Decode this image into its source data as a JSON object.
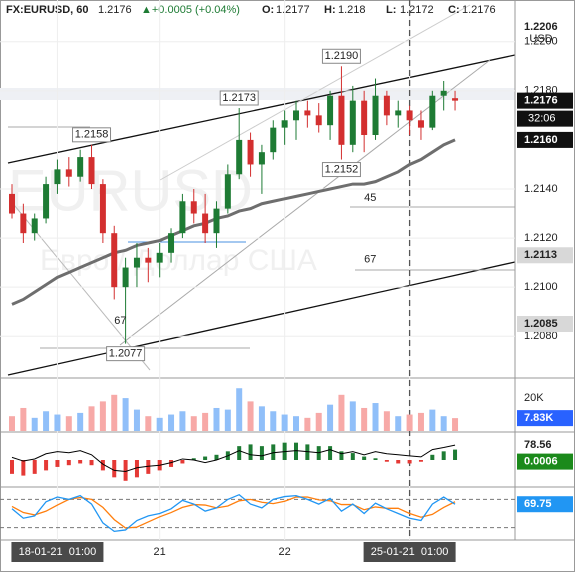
{
  "chart_data": {
    "type": "candlestick",
    "symbol": "FX:EURUSD, 60",
    "change": "▲+0.0005 (+0.04%)",
    "ohlc_names": [
      "O:",
      "H:",
      "L:",
      "C:"
    ],
    "currency": "USD",
    "watermark": [
      "EURUSD",
      "Евро / Доллар США"
    ],
    "countdown": "32:06",
    "up_color": "#1e7b34",
    "down_color": "#d32f2f",
    "ylim": [
      1.2063,
      1.2217
    ],
    "yticks": [
      {
        "value": 1.208,
        "label": "1.2080"
      },
      {
        "value": 1.21,
        "label": "1.2100"
      },
      {
        "value": 1.212,
        "label": "1.2120"
      },
      {
        "value": 1.214,
        "label": "1.2140"
      },
      {
        "value": 1.218,
        "label": "1.2180"
      },
      {
        "value": 1.22,
        "label": "1.2200"
      }
    ],
    "xticks": [
      {
        "value": 4,
        "label": "18-01-21  01:00"
      },
      {
        "value": 13,
        "label": "21"
      },
      {
        "value": 24,
        "label": "22"
      },
      {
        "value": 35,
        "label": "25-01-21  01:00"
      }
    ],
    "session_break_index": 35,
    "ohlc": [
      [
        1.2138,
        1.2142,
        1.2128,
        1.213
      ],
      [
        1.213,
        1.2134,
        1.2118,
        1.2122
      ],
      [
        1.2122,
        1.213,
        1.2119,
        1.2128
      ],
      [
        1.2128,
        1.2145,
        1.2126,
        1.2142
      ],
      [
        1.2142,
        1.2152,
        1.2138,
        1.2148
      ],
      [
        1.2148,
        1.2153,
        1.2141,
        1.2145
      ],
      [
        1.2145,
        1.2156,
        1.2143,
        1.2153
      ],
      [
        1.2153,
        1.2158,
        1.214,
        1.2142
      ],
      [
        1.2142,
        1.2144,
        1.2118,
        1.2122
      ],
      [
        1.2122,
        1.2125,
        1.2095,
        1.21
      ],
      [
        1.21,
        1.2112,
        1.2077,
        1.2108
      ],
      [
        1.2108,
        1.2118,
        1.21,
        1.2112
      ],
      [
        1.2112,
        1.2116,
        1.2102,
        1.211
      ],
      [
        1.211,
        1.2118,
        1.2104,
        1.2114
      ],
      [
        1.2114,
        1.2124,
        1.211,
        1.2122
      ],
      [
        1.2122,
        1.2138,
        1.212,
        1.2135
      ],
      [
        1.2135,
        1.214,
        1.2126,
        1.213
      ],
      [
        1.213,
        1.2138,
        1.2118,
        1.2122
      ],
      [
        1.2122,
        1.2135,
        1.2116,
        1.2132
      ],
      [
        1.2132,
        1.215,
        1.213,
        1.2146
      ],
      [
        1.2146,
        1.2173,
        1.2144,
        1.216
      ],
      [
        1.216,
        1.2163,
        1.2145,
        1.215
      ],
      [
        1.215,
        1.2158,
        1.2138,
        1.2155
      ],
      [
        1.2155,
        1.2168,
        1.2152,
        1.2165
      ],
      [
        1.2165,
        1.2172,
        1.2158,
        1.2168
      ],
      [
        1.2168,
        1.2176,
        1.216,
        1.2172
      ],
      [
        1.2172,
        1.2176,
        1.2165,
        1.217
      ],
      [
        1.217,
        1.2175,
        1.2163,
        1.2166
      ],
      [
        1.2166,
        1.218,
        1.216,
        1.2178
      ],
      [
        1.2178,
        1.219,
        1.2152,
        1.2158
      ],
      [
        1.2158,
        1.2182,
        1.2155,
        1.2176
      ],
      [
        1.2176,
        1.218,
        1.2155,
        1.2162
      ],
      [
        1.2162,
        1.2185,
        1.216,
        1.2178
      ],
      [
        1.2178,
        1.218,
        1.2166,
        1.217
      ],
      [
        1.217,
        1.2176,
        1.2165,
        1.2172
      ],
      [
        1.2172,
        1.2174,
        1.2162,
        1.2168
      ],
      [
        1.2168,
        1.2172,
        1.216,
        1.2165
      ],
      [
        1.2165,
        1.218,
        1.2164,
        1.2178
      ],
      [
        1.2178,
        1.2184,
        1.2172,
        1.218
      ],
      [
        1.2177,
        1.218,
        1.2172,
        1.2176
      ]
    ],
    "ma": [
      1.2093,
      1.2095,
      1.2098,
      1.2101,
      1.2104,
      1.2106,
      1.2108,
      1.211,
      1.2112,
      1.2114,
      1.2115,
      1.2117,
      1.2118,
      1.2119,
      1.2121,
      1.2123,
      1.2125,
      1.2126,
      1.2128,
      1.2129,
      1.2131,
      1.2132,
      1.2134,
      1.2135,
      1.2136,
      1.2137,
      1.2138,
      1.2139,
      1.214,
      1.2141,
      1.2142,
      1.2142,
      1.2143,
      1.2145,
      1.2147,
      1.215,
      1.2152,
      1.2155,
      1.2158,
      1.216
    ],
    "ma_color": "#6e6e6e",
    "price_labels": [
      {
        "value": 1.2206,
        "label": "1.2206",
        "style": "plain"
      },
      {
        "value": 1.216,
        "label": "1.2160",
        "style": "dark"
      },
      {
        "value": 1.2113,
        "label": "1.2113",
        "style": "light"
      },
      {
        "value": 1.2085,
        "label": "1.2085",
        "style": "light"
      }
    ],
    "annotations": [
      {
        "label": "1.2190",
        "value": 1.219,
        "index": 29,
        "kind": "high"
      },
      {
        "label": "1.2173",
        "value": 1.2173,
        "index": 20,
        "kind": "high"
      },
      {
        "label": "1.2158",
        "value": 1.2158,
        "index": 7,
        "kind": "high"
      },
      {
        "label": "1.2152",
        "value": 1.2152,
        "index": 29,
        "kind": "low"
      },
      {
        "label": "1.2077",
        "value": 1.2077,
        "index": 10,
        "kind": "low"
      }
    ],
    "level_labels": [
      {
        "label": "45",
        "value": 1.2133,
        "index": 31
      },
      {
        "label": "67",
        "value": 1.2108,
        "index": 31
      },
      {
        "label": "67",
        "value": 1.2083,
        "index": 9
      }
    ],
    "volume": {
      "values": [
        9000,
        14000,
        8000,
        12000,
        10000,
        9000,
        11000,
        15000,
        18000,
        22000,
        20000,
        13000,
        9000,
        8000,
        10000,
        12000,
        9000,
        11000,
        14000,
        13000,
        26000,
        18000,
        15000,
        12000,
        10000,
        9000,
        8000,
        11000,
        16000,
        22000,
        18000,
        14000,
        17000,
        12000,
        9000,
        10000,
        11000,
        13000,
        9000,
        7830
      ],
      "value_label": "7.83K",
      "ylim": [
        0,
        31000
      ],
      "yticks": [
        {
          "value": 20000,
          "label": "20K"
        }
      ],
      "up_color": "#90bff9",
      "down_color": "#f7a9a7"
    },
    "oscillator": {
      "line": [
        55,
        48,
        52,
        62,
        66,
        64,
        68,
        60,
        42,
        30,
        28,
        35,
        38,
        40,
        45,
        52,
        50,
        45,
        50,
        58,
        68,
        60,
        58,
        64,
        66,
        68,
        66,
        64,
        70,
        62,
        66,
        60,
        66,
        62,
        60,
        58,
        56,
        70,
        74,
        78.56
      ],
      "histogram": [
        -0.0008,
        -0.0009,
        -0.0008,
        -0.0006,
        -0.0004,
        -0.0003,
        -0.0002,
        -0.0003,
        -0.0006,
        -0.001,
        -0.0012,
        -0.001,
        -0.0008,
        -0.0006,
        -0.0004,
        -0.0002,
        0.0001,
        0.0002,
        0.0003,
        0.0005,
        0.0008,
        0.0009,
        0.0008,
        0.0009,
        0.001,
        0.001,
        0.0009,
        0.0008,
        0.0008,
        0.0005,
        0.0004,
        0.0002,
        0.0001,
        -0.0001,
        -0.0002,
        -0.0002,
        -0.0001,
        0.0003,
        0.0005,
        0.0006
      ],
      "ylim": [
        0,
        100
      ],
      "y2lim": [
        -0.0015,
        0.0015
      ],
      "line_color": "#000000",
      "up_color": "#1e7b34",
      "down_color": "#e53935"
    },
    "stochastic": {
      "k": [
        60,
        40,
        45,
        75,
        85,
        80,
        88,
        70,
        30,
        12,
        15,
        35,
        45,
        50,
        60,
        78,
        70,
        55,
        62,
        80,
        90,
        70,
        62,
        80,
        86,
        88,
        80,
        70,
        82,
        55,
        70,
        50,
        72,
        60,
        50,
        40,
        35,
        70,
        85,
        69.75
      ],
      "d": [
        65,
        52,
        47,
        55,
        68,
        80,
        84,
        80,
        63,
        37,
        19,
        21,
        32,
        43,
        52,
        63,
        69,
        68,
        62,
        66,
        77,
        80,
        74,
        71,
        76,
        85,
        85,
        79,
        77,
        69,
        69,
        58,
        64,
        61,
        61,
        50,
        42,
        48,
        63,
        75
      ],
      "ylim": [
        0,
        100
      ],
      "levels": [
        20,
        80
      ],
      "k_color": "#2196f3",
      "d_color": "#ff7f0e"
    }
  }
}
